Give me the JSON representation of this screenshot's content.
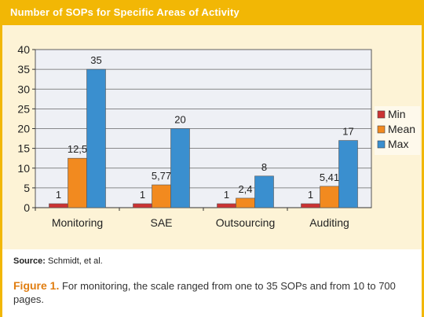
{
  "header": {
    "title": "Number of SOPs for Specific Areas of Activity"
  },
  "chart_data": {
    "type": "bar",
    "title": "",
    "xlabel": "",
    "ylabel": "",
    "categories": [
      "Monitoring",
      "SAE",
      "Outsourcing",
      "Auditing"
    ],
    "series": [
      {
        "name": "Min",
        "values": [
          1,
          1,
          1,
          1
        ],
        "labels": [
          "1",
          "1",
          "1",
          "1"
        ],
        "color": "#cc3333"
      },
      {
        "name": "Mean",
        "values": [
          12.5,
          5.77,
          2.4,
          5.41
        ],
        "labels": [
          "12,5",
          "5,77",
          "2,4",
          "5,41"
        ],
        "color": "#f28a1f"
      },
      {
        "name": "Max",
        "values": [
          35,
          20,
          8,
          17
        ],
        "labels": [
          "35",
          "20",
          "8",
          "17"
        ],
        "color": "#3a8fcf"
      }
    ],
    "ylim": [
      0,
      40
    ],
    "yticks": [
      0,
      5,
      10,
      15,
      20,
      25,
      30,
      35,
      40
    ],
    "grid": true,
    "legend_position": "right",
    "colors": {
      "plot_bg": "#eef0f5",
      "grid": "#666666"
    }
  },
  "footer": {
    "source_label": "Source:",
    "source_text": "Schmidt, et al.",
    "figure_label": "Figure 1.",
    "caption": "For monitoring, the scale ranged from one to 35 SOPs and from 10 to 700 pages."
  }
}
